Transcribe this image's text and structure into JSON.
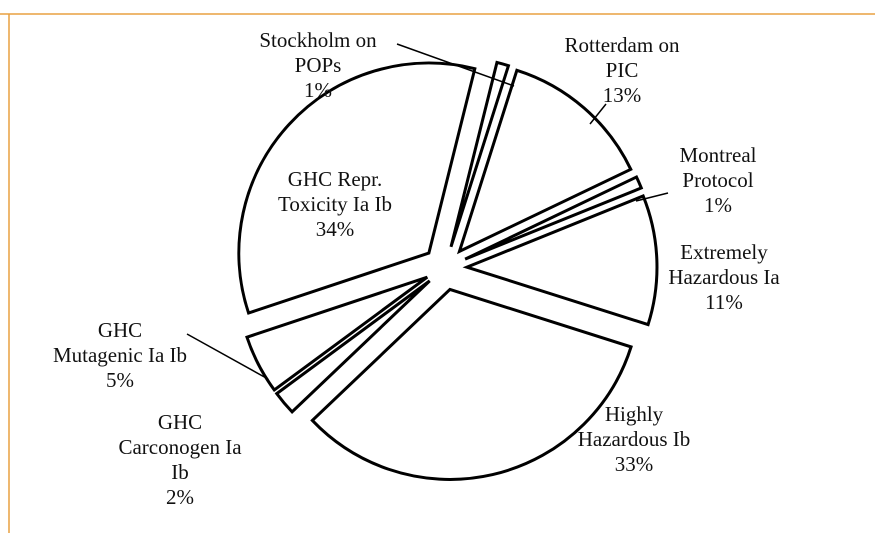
{
  "chart_data": {
    "type": "pie",
    "categories": [
      "Stockholm on\nPOPs",
      "Rotterdam on\nPIC",
      "Montreal\nProtocol",
      "Extremely\nHazardous Ia",
      "Highly\nHazardous Ib",
      "GHC\nCarconogen Ia\nIb",
      "GHC\nMutagenic Ia Ib",
      "GHC Repr.\nToxicity Ia Ib"
    ],
    "values": [
      1,
      13,
      1,
      11,
      33,
      2,
      5,
      34
    ],
    "value_labels": [
      "1%",
      "13%",
      "1%",
      "11%",
      "33%",
      "2%",
      "5%",
      "34%"
    ],
    "color": "#ffffff"
  }
}
